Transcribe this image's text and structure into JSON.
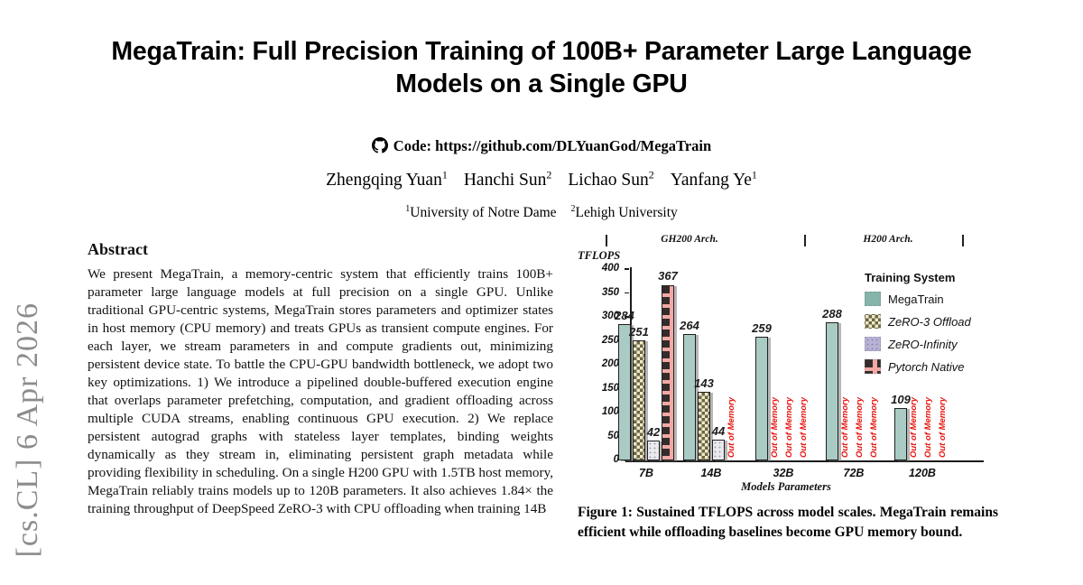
{
  "watermark": {
    "text": "[cs.CL] 6 Apr 2026"
  },
  "header": {
    "title": "MegaTrain: Full Precision Training of 100B+ Parameter Large Language Models on a Single GPU",
    "code_label": "Code:",
    "code_url": "https://github.com/DLYuanGod/MegaTrain",
    "authors": [
      {
        "name": "Zhengqing Yuan",
        "sup": "1"
      },
      {
        "name": "Hanchi Sun",
        "sup": "2"
      },
      {
        "name": "Lichao Sun",
        "sup": "2"
      },
      {
        "name": "Yanfang Ye",
        "sup": "1"
      }
    ],
    "affiliations": [
      {
        "sup": "1",
        "name": "University of Notre Dame"
      },
      {
        "sup": "2",
        "name": "Lehigh University"
      }
    ]
  },
  "abstract": {
    "heading": "Abstract",
    "text": "We present MegaTrain, a memory-centric system that efficiently trains 100B+ parameter large language models at full precision on a single GPU. Unlike traditional GPU-centric systems, MegaTrain stores parameters and optimizer states in host memory (CPU memory) and treats GPUs as transient compute engines. For each layer, we stream parameters in and compute gradients out, minimizing persistent device state. To battle the CPU-GPU bandwidth bottleneck, we adopt two key optimizations. 1) We introduce a pipelined double-buffered execution engine that overlaps parameter prefetching, computation, and gradient offloading across multiple CUDA streams, enabling continuous GPU execution. 2) We replace persistent autograd graphs with stateless layer templates, binding weights dynamically as they stream in, eliminating persistent graph metadata while providing flexibility in scheduling. On a single H200 GPU with 1.5TB host memory, MegaTrain reliably trains models up to 120B parameters. It also achieves 1.84× the training throughput of DeepSpeed ZeRO-3 with CPU offloading when training 14B"
  },
  "figure": {
    "caption": "Figure 1: Sustained TFLOPS across model scales. MegaTrain remains efficient while offloading baselines become GPU memory bound."
  },
  "chart_data": {
    "type": "bar",
    "ylabel": "TFLOPS",
    "xlabel": "Models Parameters",
    "ylim": [
      0,
      400
    ],
    "yticks": [
      0,
      50,
      100,
      150,
      200,
      250,
      300,
      350,
      400
    ],
    "grid": false,
    "legend_position": "right",
    "legend_title": "Training System",
    "categories": [
      "7B",
      "14B",
      "32B",
      "72B",
      "120B"
    ],
    "arch_sections": [
      {
        "label": "GH200 Arch."
      },
      {
        "label": "H200 Arch."
      }
    ],
    "oom_label": "Out of Memory",
    "oom_color": "#e8140e",
    "series": [
      {
        "name": "MegaTrain",
        "pattern": "solid",
        "color": "#84b4aa",
        "bar_color": "#a9cbc3",
        "values": [
          284,
          264,
          259,
          288,
          109
        ]
      },
      {
        "name": "ZeRO-3 Offload",
        "pattern": "checker",
        "color": "#efe9c4",
        "bar_color": "#efe9c4",
        "values": [
          251,
          143,
          "OOM",
          "OOM",
          "OOM"
        ]
      },
      {
        "name": "ZeRO-Infinity",
        "pattern": "dots",
        "color": "#b7b2d6",
        "bar_color": "#e9e9ee",
        "values": [
          42,
          44,
          "OOM",
          "OOM",
          "OOM"
        ]
      },
      {
        "name": "Pytorch Native",
        "pattern": "brick",
        "color": "#f2a9a6",
        "bar_color": "#f2a9a6",
        "values": [
          367,
          "OOM",
          "OOM",
          "OOM",
          "OOM"
        ]
      }
    ]
  }
}
